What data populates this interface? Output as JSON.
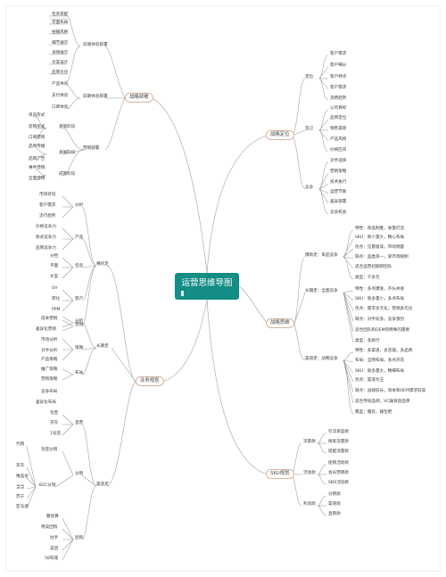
{
  "center": "运营思维导图",
  "branches": {
    "b1": "战略部署",
    "b2": "业务规划",
    "b3": "战略定位",
    "b4": "战略思维",
    "b5": "SKU规划"
  },
  "left_top": {
    "sub1": "前端体验部署",
    "sub2": "前期体验部署",
    "sub3": "营销部署",
    "a": [
      "包装搭配",
      "页面布局",
      "拍摄风格",
      "细节展示",
      "详情展示",
      "文案设计",
      "品牌文化"
    ],
    "b": [
      "产品体验",
      "支付体验",
      "口碑体验"
    ],
    "c1": "基础阶段",
    "c2": "发展阶段",
    "c3": "成熟阶段",
    "c": [
      "单品形式",
      "促销形式",
      "口碑营销",
      "品牌传播",
      "品牌广告",
      "事件营销",
      "全面营销"
    ]
  },
  "left_bottom": {
    "s1": "横的走",
    "s2": "长期走",
    "s3": "渠道走",
    "t1": "分析",
    "t2": "产品",
    "t3": "包装",
    "t4": "客户",
    "t5": "营销",
    "t6": "分析",
    "t7": "策略",
    "t8": "布局",
    "t9": "直营",
    "t10": "分销",
    "t11": "团购",
    "a": [
      "市场状况",
      "客户需求",
      "流行趋势",
      "价格竞争力",
      "款式竞争力",
      "品牌竞争力",
      "分档",
      "平面",
      "文案",
      "UV",
      "转化",
      "PPM",
      "成本营销",
      "差异化营销"
    ],
    "b": [
      "市场分析",
      "对手分析",
      "产品策略",
      "推广策略",
      "营销策略",
      "竞争布局",
      "差异化布局"
    ],
    "c": [
      "淘宝",
      "京东",
      "1号店",
      "淘宝分销",
      "代销",
      "B2C分销",
      "京东",
      "唯品会",
      "当当",
      "苏宁",
      "亚马逊",
      "聚划算",
      "特卖团购",
      "拉手",
      "美团",
      "58同城"
    ]
  },
  "right_top": {
    "s1": "定位",
    "s2": "自己",
    "s3": "竞争",
    "a": [
      "客户需求",
      "客户细分",
      "客户特点",
      "客户需求",
      "消费趋势"
    ],
    "b": [
      "公司目标",
      "品牌定位",
      "销售渠道",
      "产品风格",
      "价格区间"
    ],
    "c": [
      "对手选择",
      "营销策略",
      "技术执行",
      "运营节奏",
      "差异部署",
      "竞争机会"
    ]
  },
  "right_mid": {
    "s1": "爆款走：单品竞争",
    "s2": "长期走：全面竞争",
    "s3": "渠道走：战略竞争",
    "a": [
      "特性：单品制胜，质量打造",
      "SKU：款少量大，精心布局",
      "优点：见量极高，带动销量",
      "缺点：品类单一，受市场限制",
      "适合运营初期新团队",
      "类型：千多元"
    ],
    "b": [
      "特性：多点爆发，齐头并进",
      "SKU：款多量少，多点布局",
      "优点：需求多元化，营销多元化",
      "缺点：对手较多，竞争激烈",
      "适合团队和OEM和特殊的需要",
      "类型：多款行"
    ],
    "c": [
      "特性：多渠道，多店铺，多品牌",
      "布局：全网布局，多点开花",
      "SKU：款多量大，精细布局",
      "优点：渠道为王",
      "缺点：战线较长，资本和OEM需求较高",
      "适合传统品牌，VC融资后品牌",
      "典型：服装，箱包鞋"
    ]
  },
  "right_bottom": {
    "s1": "流量款",
    "s2": "活动款",
    "s3": "利润款",
    "a": [
      "引流单品款",
      "搜索流量款",
      "搭配流量款"
    ],
    "b": [
      "促销活动款",
      "会员营销款",
      "SNS活动款"
    ],
    "c": [
      "分销款",
      "渠道款",
      "直销款"
    ]
  }
}
